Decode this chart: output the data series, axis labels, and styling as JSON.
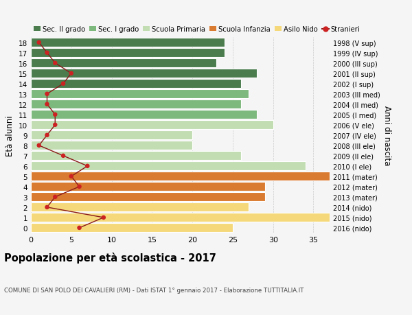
{
  "ages": [
    18,
    17,
    16,
    15,
    14,
    13,
    12,
    11,
    10,
    9,
    8,
    7,
    6,
    5,
    4,
    3,
    2,
    1,
    0
  ],
  "bar_values": [
    24,
    24,
    23,
    28,
    26,
    27,
    26,
    28,
    30,
    20,
    20,
    26,
    34,
    37,
    29,
    29,
    27,
    37,
    25
  ],
  "bar_colors": [
    "#4a7c4e",
    "#4a7c4e",
    "#4a7c4e",
    "#4a7c4e",
    "#4a7c4e",
    "#7db87d",
    "#7db87d",
    "#7db87d",
    "#c2ddb2",
    "#c2ddb2",
    "#c2ddb2",
    "#c2ddb2",
    "#c2ddb2",
    "#d97b30",
    "#d97b30",
    "#d97b30",
    "#f5d87a",
    "#f5d87a",
    "#f5d87a"
  ],
  "right_labels": [
    "1998 (V sup)",
    "1999 (IV sup)",
    "2000 (III sup)",
    "2001 (II sup)",
    "2002 (I sup)",
    "2003 (III med)",
    "2004 (II med)",
    "2005 (I med)",
    "2006 (V ele)",
    "2007 (IV ele)",
    "2008 (III ele)",
    "2009 (II ele)",
    "2010 (I ele)",
    "2011 (mater)",
    "2012 (mater)",
    "2013 (mater)",
    "2014 (nido)",
    "2015 (nido)",
    "2016 (nido)"
  ],
  "stranieri_values": [
    1,
    2,
    3,
    5,
    4,
    2,
    2,
    3,
    3,
    2,
    1,
    4,
    7,
    5,
    6,
    3,
    2,
    9,
    6
  ],
  "legend_labels": [
    "Sec. II grado",
    "Sec. I grado",
    "Scuola Primaria",
    "Scuola Infanzia",
    "Asilo Nido",
    "Stranieri"
  ],
  "legend_colors": [
    "#4a7c4e",
    "#7db87d",
    "#c2ddb2",
    "#d97b30",
    "#f5d87a",
    "#cc2222"
  ],
  "ylabel_left": "Età alunni",
  "ylabel_right": "Anni di nascita",
  "title": "Popolazione per età scolastica - 2017",
  "subtitle": "COMUNE DI SAN POLO DEI CAVALIERI (RM) - Dati ISTAT 1° gennaio 2017 - Elaborazione TUTTITALIA.IT",
  "xlim": [
    0,
    37
  ],
  "ylim": [
    -0.5,
    18.5
  ],
  "bg_color": "#f5f5f5",
  "plot_bg_color": "#f5f5f5",
  "bar_edge_color": "white",
  "line_color": "#8b1a1a",
  "dot_color": "#cc2222",
  "grid_color": "#cccccc"
}
